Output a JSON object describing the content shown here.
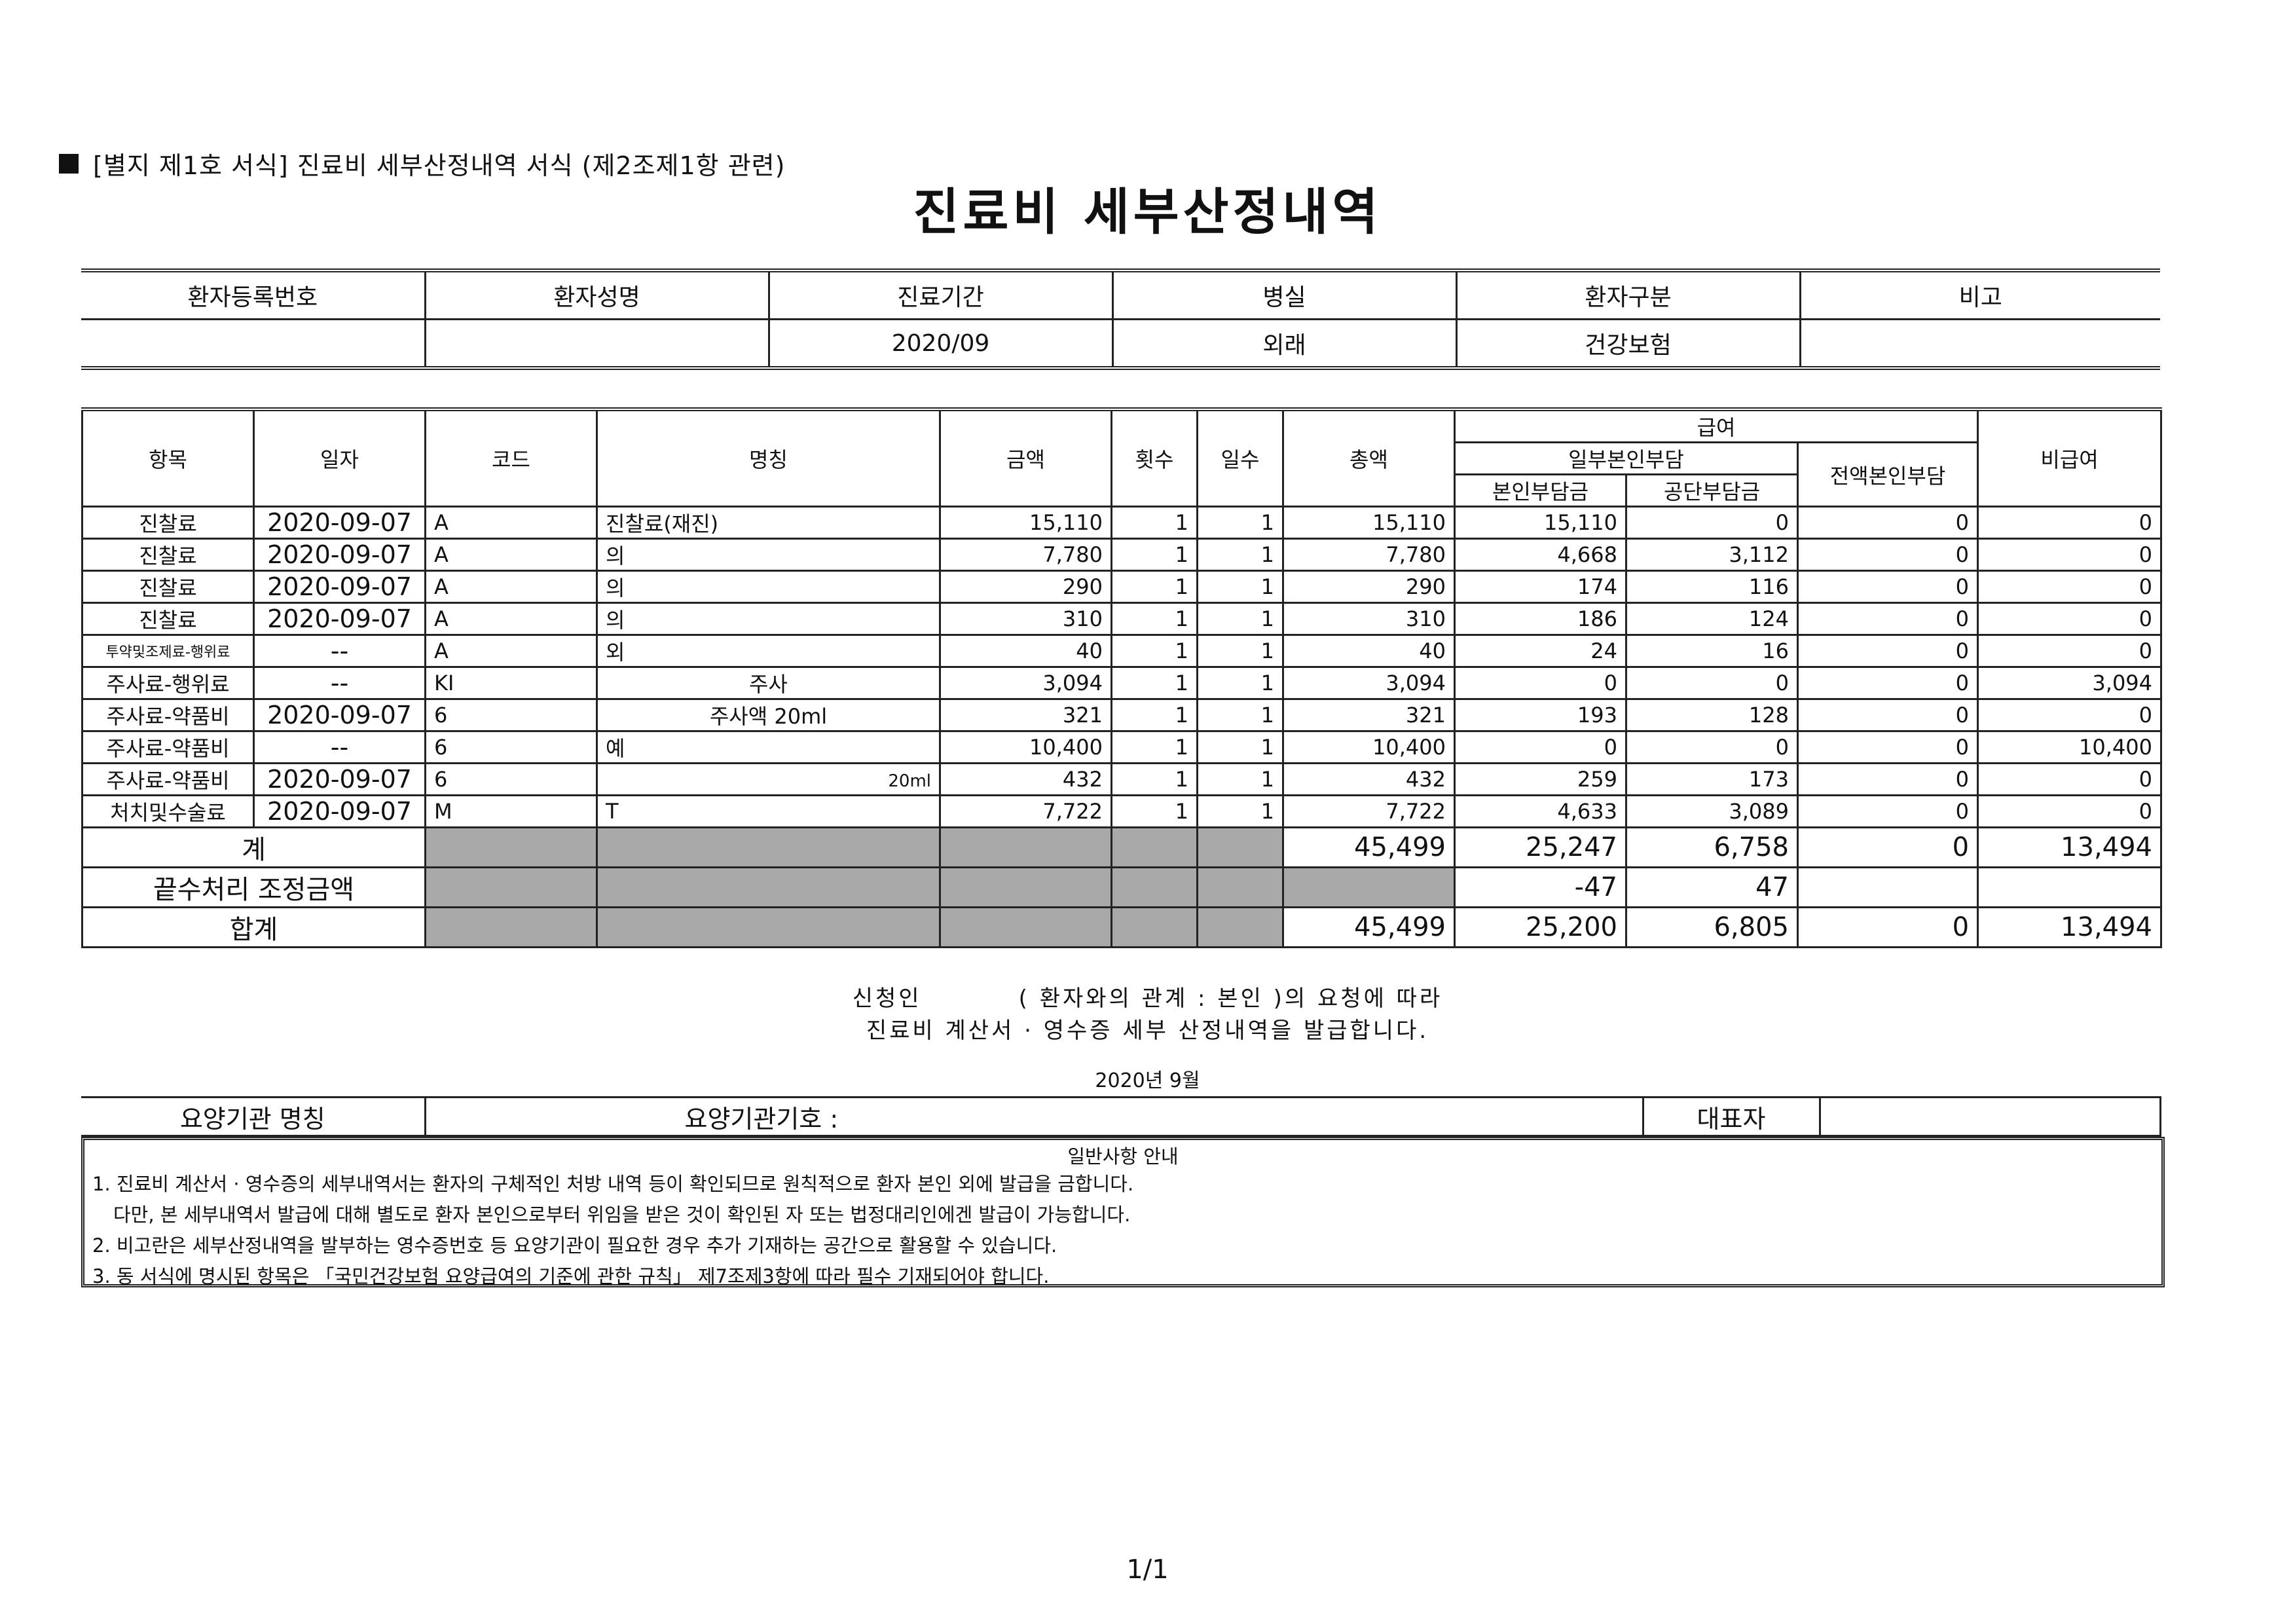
{
  "form_header": "[별지 제1호 서식] 진료비 세부산정내역 서식 (제2조제1항 관련)",
  "title": "진료비 세부산정내역",
  "patient_info": {
    "headers": [
      "환자등록번호",
      "환자성명",
      "진료기간",
      "병실",
      "환자구분",
      "비고"
    ],
    "values": [
      "",
      "",
      "2020/09",
      "외래",
      "건강보험",
      ""
    ]
  },
  "detail_headers": {
    "item": "항목",
    "date": "일자",
    "code": "코드",
    "name": "명칭",
    "amount": "금액",
    "times": "횟수",
    "days": "일수",
    "total": "총액",
    "benefit": "급여",
    "partial_self": "일부본인부담",
    "self_pay": "본인부담금",
    "public_pay": "공단부담금",
    "full_self": "전액본인부담",
    "non_benefit": "비급여"
  },
  "rows": [
    {
      "item": "진찰료",
      "date": "2020-09-07",
      "code": "A",
      "name": "진찰료(재진)",
      "name_extra": "",
      "amount": "15,110",
      "times": "1",
      "days": "1",
      "total": "15,110",
      "self": "15,110",
      "public": "0",
      "full_self": "0",
      "non_benefit": "0"
    },
    {
      "item": "진찰료",
      "date": "2020-09-07",
      "code": "A",
      "name": "의",
      "name_extra": "",
      "amount": "7,780",
      "times": "1",
      "days": "1",
      "total": "7,780",
      "self": "4,668",
      "public": "3,112",
      "full_self": "0",
      "non_benefit": "0"
    },
    {
      "item": "진찰료",
      "date": "2020-09-07",
      "code": "A",
      "name": "의",
      "name_extra": "",
      "amount": "290",
      "times": "1",
      "days": "1",
      "total": "290",
      "self": "174",
      "public": "116",
      "full_self": "0",
      "non_benefit": "0"
    },
    {
      "item": "진찰료",
      "date": "2020-09-07",
      "code": "A",
      "name": "의",
      "name_extra": "",
      "amount": "310",
      "times": "1",
      "days": "1",
      "total": "310",
      "self": "186",
      "public": "124",
      "full_self": "0",
      "non_benefit": "0"
    },
    {
      "item": "투약및조제료-행위료",
      "date": "--",
      "code": "A",
      "name": "외",
      "name_extra": "",
      "amount": "40",
      "times": "1",
      "days": "1",
      "total": "40",
      "self": "24",
      "public": "16",
      "full_self": "0",
      "non_benefit": "0"
    },
    {
      "item": "주사료-행위료",
      "date": "--",
      "code": "KI",
      "name": "주사",
      "name_extra": "",
      "amount": "3,094",
      "times": "1",
      "days": "1",
      "total": "3,094",
      "self": "0",
      "public": "0",
      "full_self": "0",
      "non_benefit": "3,094"
    },
    {
      "item": "주사료-약품비",
      "date": "2020-09-07",
      "code": "6",
      "name": "주사액 20ml",
      "name_extra": "",
      "amount": "321",
      "times": "1",
      "days": "1",
      "total": "321",
      "self": "193",
      "public": "128",
      "full_self": "0",
      "non_benefit": "0"
    },
    {
      "item": "주사료-약품비",
      "date": "--",
      "code": "6",
      "name": "예",
      "name_extra": "",
      "amount": "10,400",
      "times": "1",
      "days": "1",
      "total": "10,400",
      "self": "0",
      "public": "0",
      "full_self": "0",
      "non_benefit": "10,400"
    },
    {
      "item": "주사료-약품비",
      "date": "2020-09-07",
      "code": "6",
      "name": "",
      "name_extra": "20ml",
      "amount": "432",
      "times": "1",
      "days": "1",
      "total": "432",
      "self": "259",
      "public": "173",
      "full_self": "0",
      "non_benefit": "0"
    },
    {
      "item": "처치및수술료",
      "date": "2020-09-07",
      "code": "M",
      "name": "T",
      "name_extra": "",
      "amount": "7,722",
      "times": "1",
      "days": "1",
      "total": "7,722",
      "self": "4,633",
      "public": "3,089",
      "full_self": "0",
      "non_benefit": "0"
    }
  ],
  "subtotal": {
    "label": "계",
    "total": "45,499",
    "self": "25,247",
    "public": "6,758",
    "full_self": "0",
    "non_benefit": "13,494"
  },
  "rounding": {
    "label": "끝수처리 조정금액",
    "self": "-47",
    "public": "47"
  },
  "grand_total": {
    "label": "합계",
    "total": "45,499",
    "self": "25,200",
    "public": "6,805",
    "full_self": "0",
    "non_benefit": "13,494"
  },
  "statement": {
    "line1": "신청인          ( 환자와의 관계 : 본인 )의 요청에 따라",
    "line2": "진료비 계산서 · 영수증 세부 산정내역을 발급합니다."
  },
  "issue_date": "2020년 9월",
  "institution": {
    "name_label": "요양기관 명칭",
    "number_label": "요양기관기호 :",
    "rep_label": "대표자"
  },
  "notes": {
    "title": "일반사항 안내",
    "lines": [
      "1. 진료비 계산서 · 영수증의 세부내역서는 환자의 구체적인 처방 내역 등이 확인되므로 원칙적으로 환자 본인 외에 발급을 금합니다.",
      "다만, 본 세부내역서 발급에 대해 별도로 환자 본인으로부터 위임을 받은 것이 확인된 자 또는 법정대리인에겐 발급이 가능합니다.",
      "2. 비고란은 세부산정내역을 발부하는 영수증번호 등 요양기관이 필요한 경우 추가 기재하는 공간으로 활용할 수 있습니다.",
      "3. 동 서식에 명시된 항목은 「국민건강보험 요양급여의 기준에 관한 규칙」 제7조제3항에 따라 필수 기재되어야 합니다."
    ]
  },
  "page_number": "1/1"
}
